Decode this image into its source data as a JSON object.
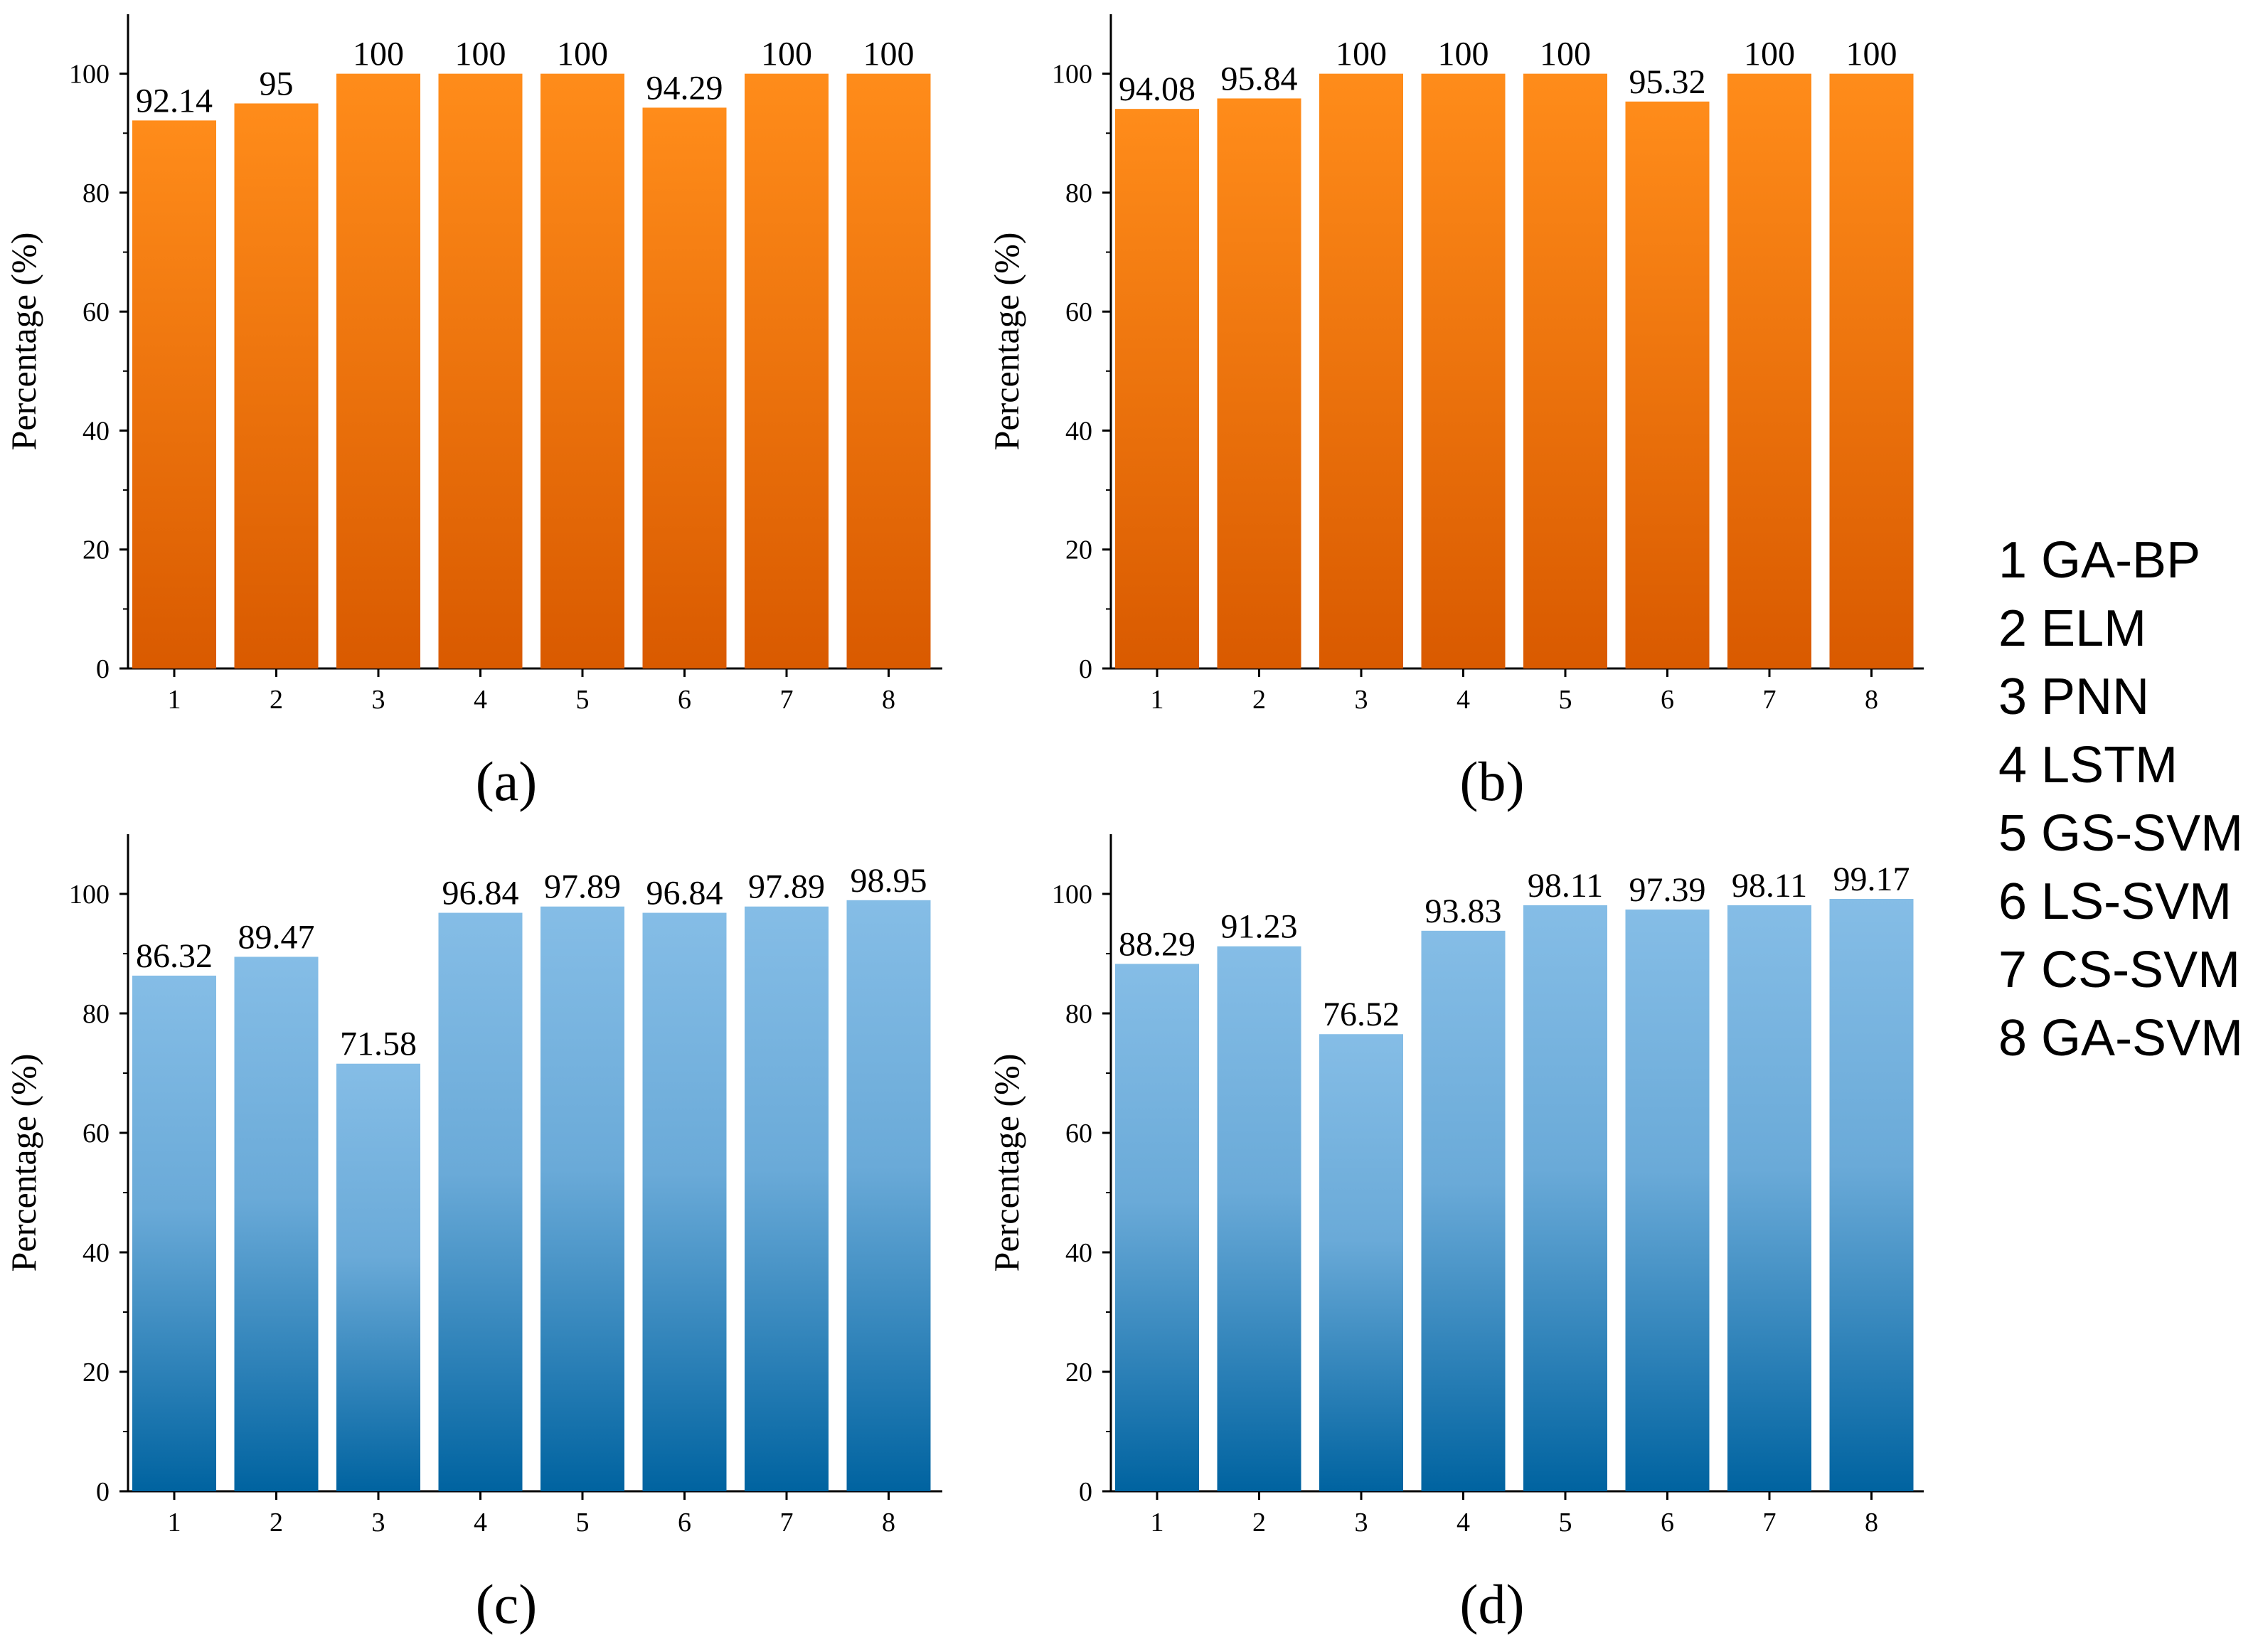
{
  "chart_data": [
    {
      "type": "bar",
      "panel_label": "(a)",
      "categories": [
        "1",
        "2",
        "3",
        "4",
        "5",
        "6",
        "7",
        "8"
      ],
      "values": [
        92.14,
        95,
        100,
        100,
        100,
        94.29,
        100,
        100
      ],
      "data_labels": [
        "92.14",
        "95",
        "100",
        "100",
        "100",
        "94.29",
        "100",
        "100"
      ],
      "ylabel": "Percentage (%)",
      "xlabel": "",
      "ylim": [
        0,
        110
      ],
      "yticks": [
        0,
        20,
        40,
        60,
        80,
        100
      ],
      "bar_color_top": "#ff8c1a",
      "bar_color_bottom": "#d95a00"
    },
    {
      "type": "bar",
      "panel_label": "(b)",
      "categories": [
        "1",
        "2",
        "3",
        "4",
        "5",
        "6",
        "7",
        "8"
      ],
      "values": [
        94.08,
        95.84,
        100,
        100,
        100,
        95.32,
        100,
        100
      ],
      "data_labels": [
        "94.08",
        "95.84",
        "100",
        "100",
        "100",
        "95.32",
        "100",
        "100"
      ],
      "ylabel": "Percentage (%)",
      "xlabel": "",
      "ylim": [
        0,
        110
      ],
      "yticks": [
        0,
        20,
        40,
        60,
        80,
        100
      ],
      "bar_color_top": "#ff8c1a",
      "bar_color_bottom": "#d95a00"
    },
    {
      "type": "bar",
      "panel_label": "(c)",
      "categories": [
        "1",
        "2",
        "3",
        "4",
        "5",
        "6",
        "7",
        "8"
      ],
      "values": [
        86.32,
        89.47,
        71.58,
        96.84,
        97.89,
        96.84,
        97.89,
        98.95
      ],
      "data_labels": [
        "86.32",
        "89.47",
        "71.58",
        "96.84",
        "97.89",
        "96.84",
        "97.89",
        "98.95"
      ],
      "ylabel": "Percentage (%)",
      "xlabel": "",
      "ylim": [
        0,
        110
      ],
      "yticks": [
        0,
        20,
        40,
        60,
        80,
        100
      ],
      "bar_color_top": "#85bde6",
      "bar_color_bottom": "#0063a0"
    },
    {
      "type": "bar",
      "panel_label": "(d)",
      "categories": [
        "1",
        "2",
        "3",
        "4",
        "5",
        "6",
        "7",
        "8"
      ],
      "values": [
        88.29,
        91.23,
        76.52,
        93.83,
        98.11,
        97.39,
        98.11,
        99.17
      ],
      "data_labels": [
        "88.29",
        "91.23",
        "76.52",
        "93.83",
        "98.11",
        "97.39",
        "98.11",
        "99.17"
      ],
      "ylabel": "Percentage (%)",
      "xlabel": "",
      "ylim": [
        0,
        110
      ],
      "yticks": [
        0,
        20,
        40,
        60,
        80,
        100
      ],
      "bar_color_top": "#85bde6",
      "bar_color_bottom": "#0063a0"
    }
  ],
  "legend": {
    "items": [
      "1 GA-BP",
      "2 ELM",
      "3 PNN",
      "4 LSTM",
      "5 GS-SVM",
      "6 LS-SVM",
      "7 CS-SVM",
      "8 GA-SVM"
    ]
  }
}
